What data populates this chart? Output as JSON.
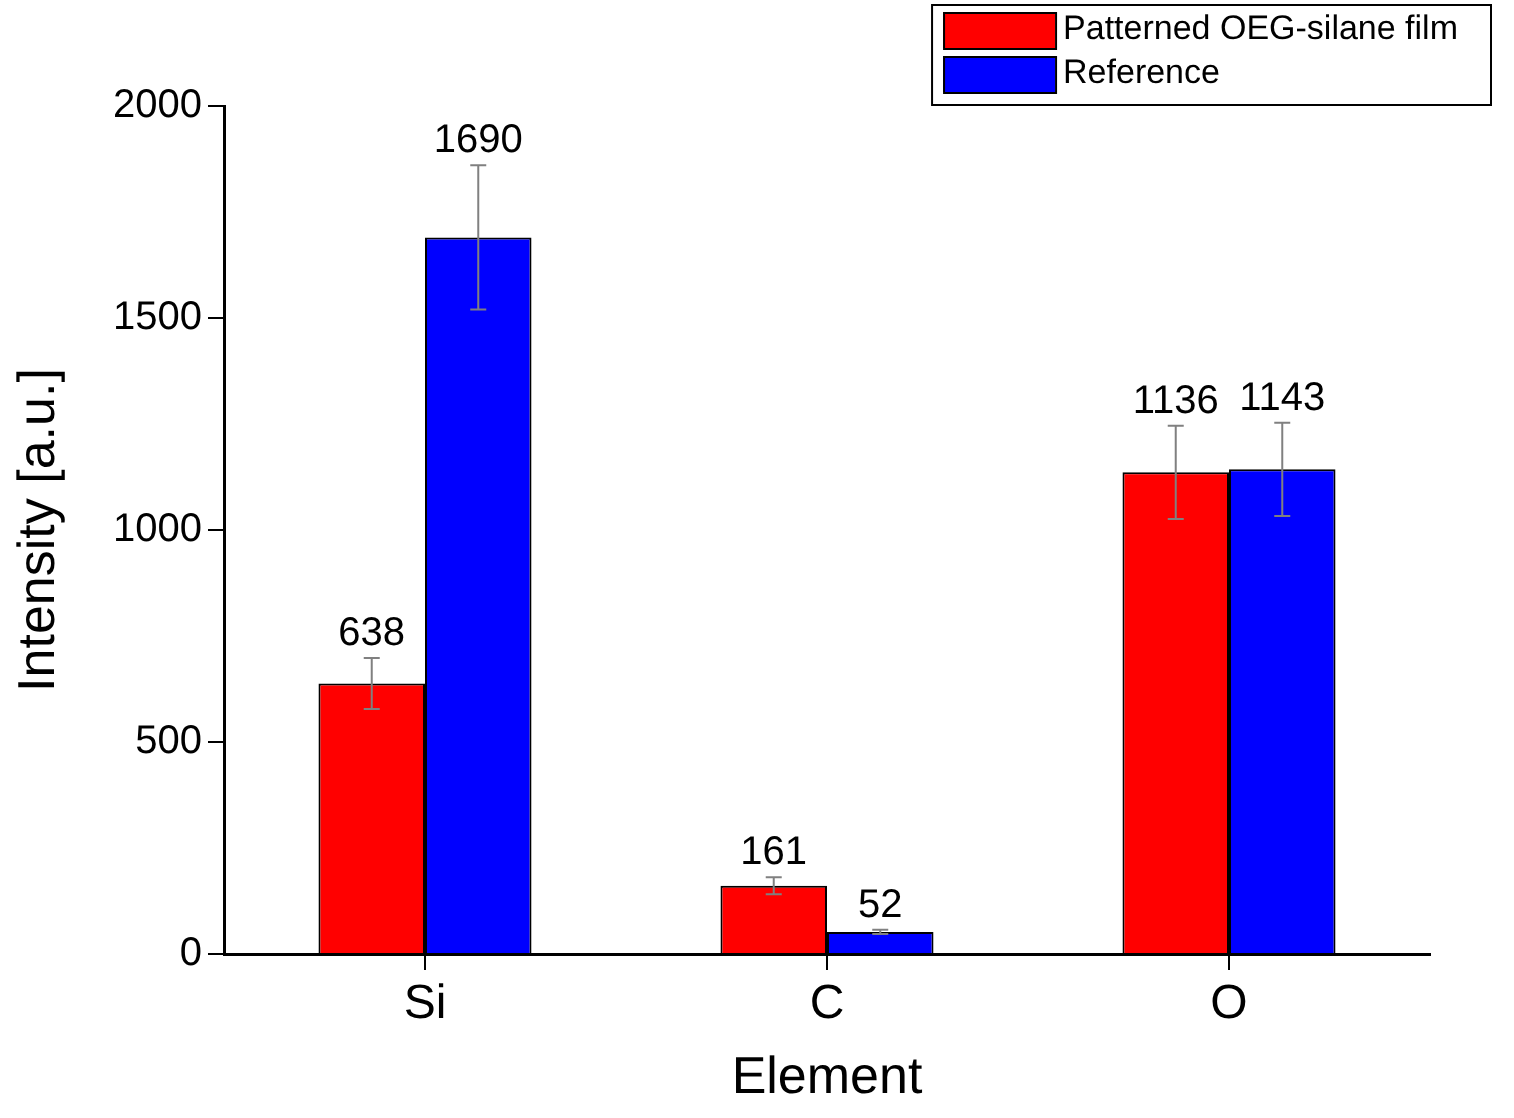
{
  "chart_data": {
    "type": "bar",
    "xlabel": "Element",
    "ylabel": "Intensity [a.u.]",
    "categories": [
      "Si",
      "C",
      "O"
    ],
    "series": [
      {
        "name": "Patterned OEG-silane film",
        "color": "#ff0000",
        "values": [
          638,
          161,
          1136
        ],
        "errors": [
          60,
          20,
          110
        ]
      },
      {
        "name": "Reference",
        "color": "#0000ff",
        "values": [
          1690,
          52,
          1143
        ],
        "errors": [
          170,
          5,
          110
        ]
      }
    ],
    "ylim": [
      0,
      2000
    ],
    "yticks": [
      0,
      500,
      1000,
      1500,
      2000
    ],
    "grid": false,
    "legend": "top right",
    "data_labels": true
  }
}
